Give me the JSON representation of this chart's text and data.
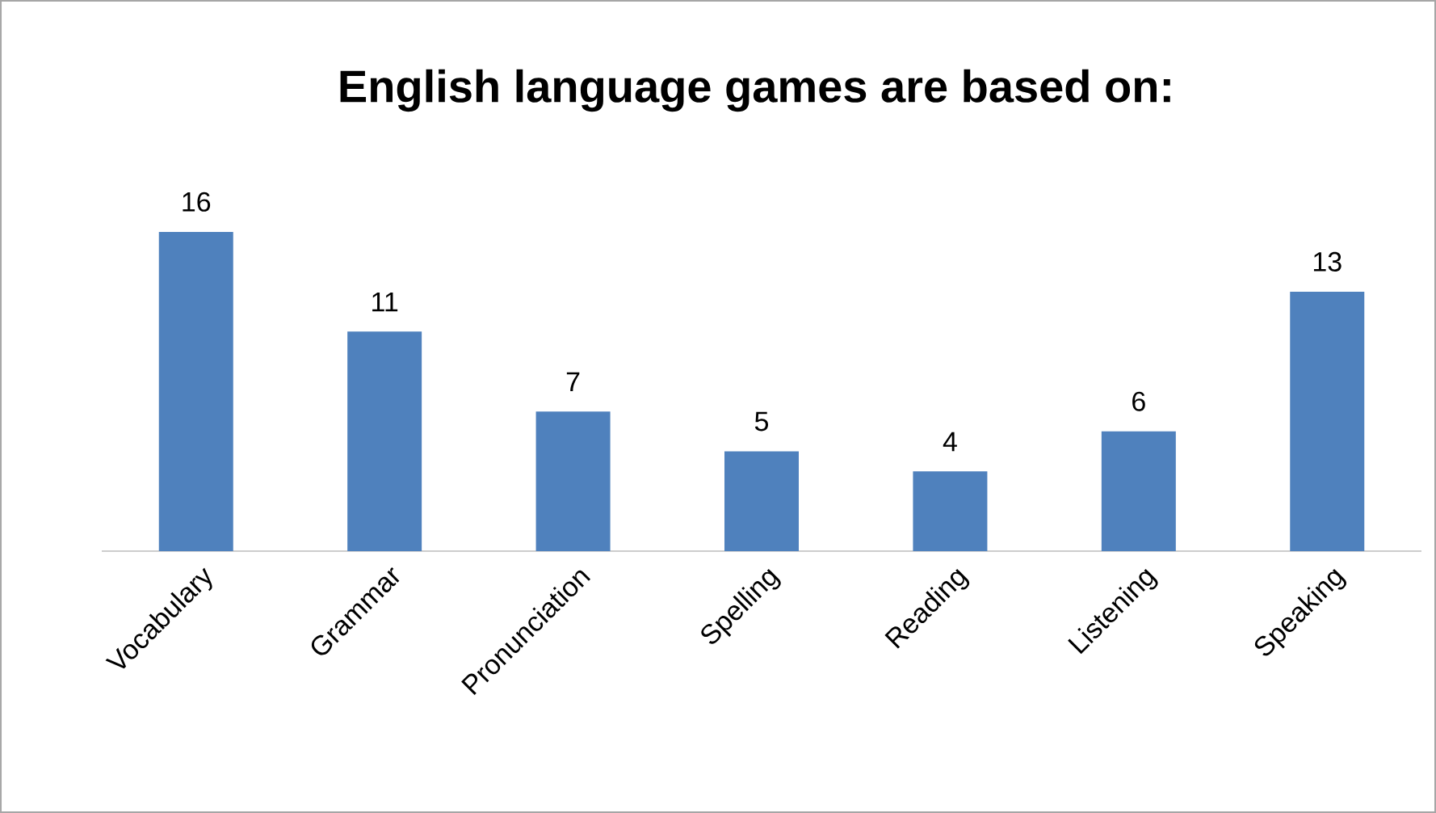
{
  "chart_data": {
    "type": "bar",
    "title": "English language games are based on:",
    "categories": [
      "Vocabulary",
      "Grammar",
      "Pronunciation",
      "Spelling",
      "Reading",
      "Listening",
      "Speaking"
    ],
    "values": [
      16,
      11,
      7,
      5,
      4,
      6,
      13
    ],
    "color": "#4f81bd",
    "data_labels": true
  }
}
